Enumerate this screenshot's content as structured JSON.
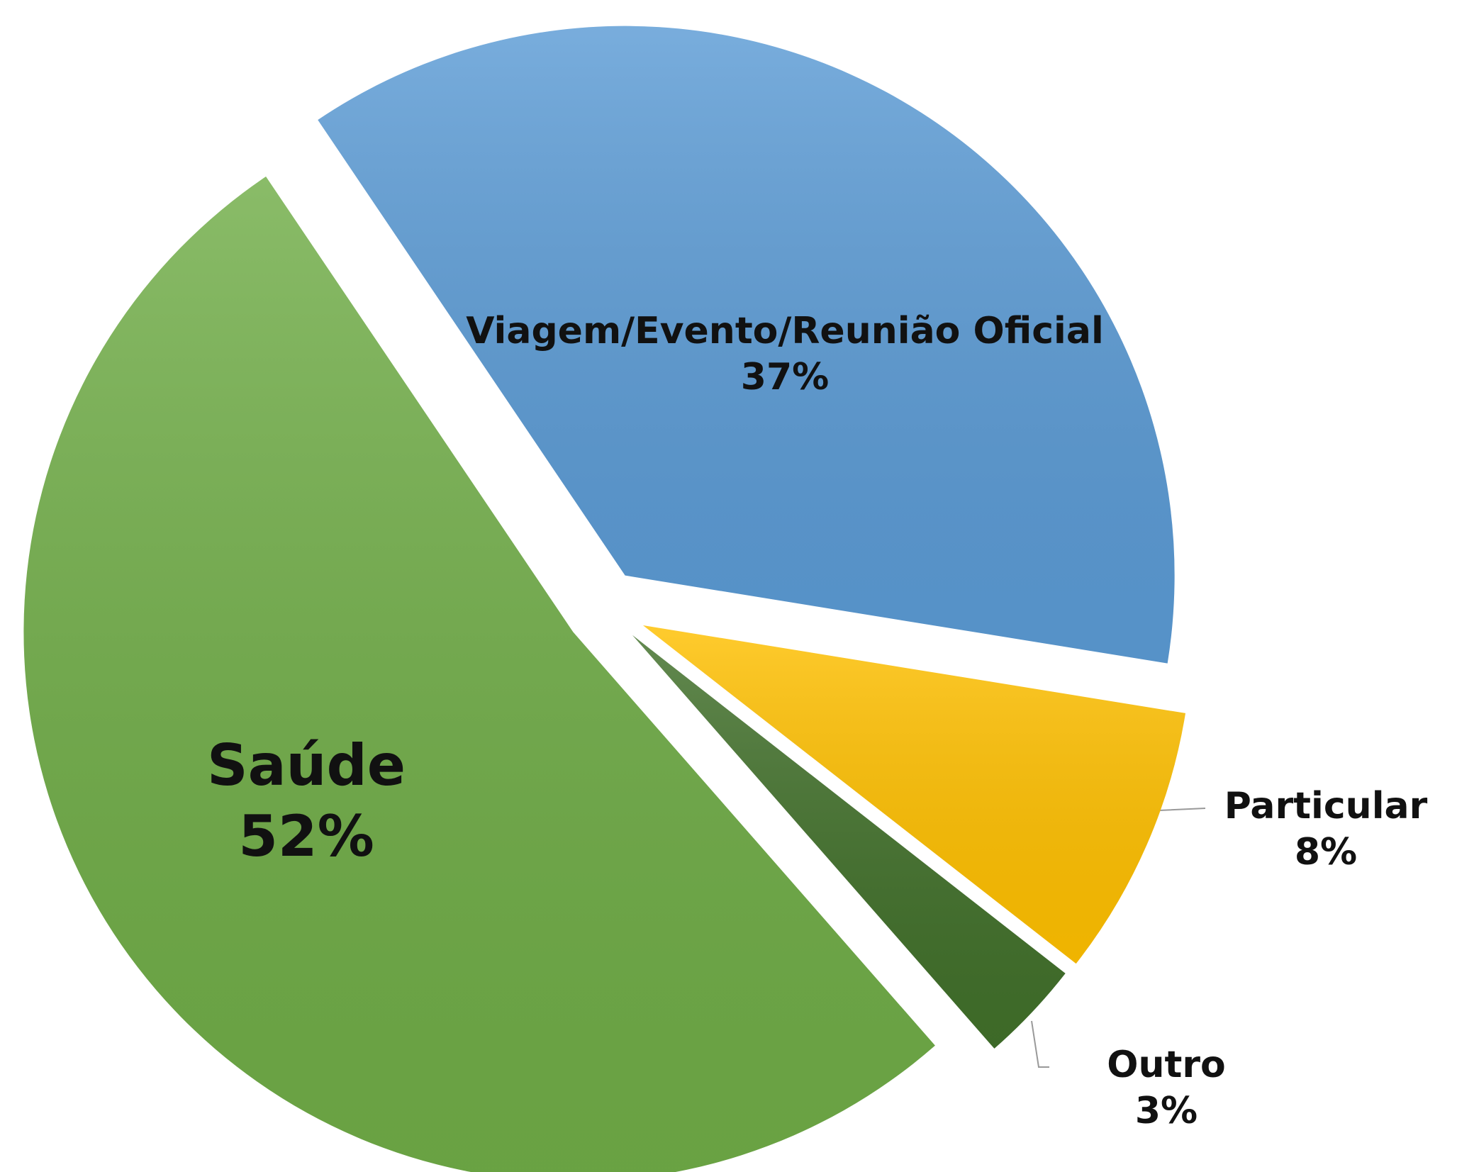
{
  "chart_data": {
    "type": "pie",
    "categories": [
      "Viagem/Evento/Reunião Oficial",
      "Particular",
      "Outro",
      "Saúde"
    ],
    "values": [
      37,
      8,
      3,
      52
    ],
    "value_labels": [
      "37%",
      "8%",
      "3%",
      "52%"
    ],
    "colors": [
      "#5b9bd5",
      "#ffc000",
      "#41702a",
      "#70ad47"
    ]
  }
}
